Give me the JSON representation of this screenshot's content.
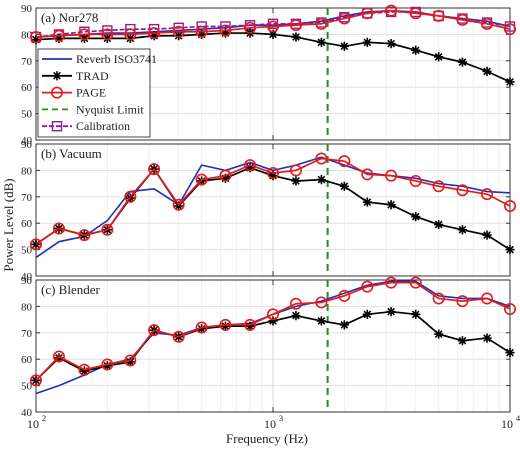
{
  "figure": {
    "ylabel": "Power Level (dB)",
    "xlabel": "Frequency (Hz)",
    "x_ticks": [
      100,
      1000,
      10000
    ],
    "x_tick_labels": [
      [
        "10",
        "2"
      ],
      [
        "10",
        "3"
      ],
      [
        "10",
        "4"
      ]
    ],
    "y_ticks": [
      40,
      50,
      60,
      70,
      80,
      90
    ],
    "xlim": [
      100,
      10000
    ],
    "ylim": [
      40,
      90
    ],
    "x_scale": "log",
    "grid": true,
    "nyquist_x": 1700
  },
  "colors": {
    "reverb": "#1f2fb8",
    "trad": "#000000",
    "page": "#e21b1b",
    "nyquist": "#1a8f1a",
    "calibration": "#8a1f9a"
  },
  "legend": {
    "placement": "left, panel (a)",
    "entries": [
      {
        "key": "reverb",
        "label": "Reverb ISO3741"
      },
      {
        "key": "trad",
        "label": "TRAD"
      },
      {
        "key": "page",
        "label": "PAGE"
      },
      {
        "key": "nyquist",
        "label": "Nyquist Limit"
      },
      {
        "key": "calibration",
        "label": "Calibration"
      }
    ]
  },
  "chart_data": [
    {
      "type": "line",
      "title": "(a) Nor278",
      "x": [
        100,
        125,
        160,
        200,
        250,
        315,
        400,
        500,
        630,
        800,
        1000,
        1250,
        1600,
        2000,
        2500,
        3150,
        4000,
        5000,
        6300,
        8000,
        10000
      ],
      "series": [
        {
          "name": "Reverb ISO3741",
          "values": [
            79,
            79.5,
            80,
            80.5,
            80.5,
            81,
            81.5,
            82,
            82.5,
            83.5,
            83.5,
            84,
            85,
            87,
            88.5,
            89,
            88.5,
            87,
            86,
            85,
            83
          ]
        },
        {
          "name": "TRAD",
          "values": [
            78,
            78.5,
            78.5,
            78.5,
            78.5,
            79.5,
            79.5,
            80,
            80.5,
            80.5,
            80,
            79,
            77,
            75.5,
            77,
            76.5,
            74,
            71.5,
            69.5,
            66,
            62
          ]
        },
        {
          "name": "PAGE",
          "values": [
            79,
            79.5,
            80,
            80,
            80,
            80.5,
            81,
            81,
            81.5,
            82.5,
            83,
            83.5,
            84,
            86,
            88,
            89,
            88,
            87,
            85.5,
            84,
            82
          ]
        },
        {
          "name": "Calibration",
          "values": [
            79,
            80,
            81,
            81.5,
            82,
            82,
            82.5,
            83,
            83,
            83.5,
            84,
            84,
            84.5,
            86.5,
            88,
            88.5,
            88.5,
            87,
            86,
            84.5,
            83
          ]
        }
      ]
    },
    {
      "type": "line",
      "title": "(b) Vacuum",
      "x": [
        100,
        125,
        160,
        200,
        250,
        315,
        400,
        500,
        630,
        800,
        1000,
        1250,
        1600,
        2000,
        2500,
        3150,
        4000,
        5000,
        6300,
        8000,
        10000
      ],
      "series": [
        {
          "name": "Reverb ISO3741",
          "values": [
            47,
            53,
            55,
            61,
            72,
            73,
            67,
            82,
            80,
            83,
            80,
            82,
            85,
            82,
            79,
            78,
            77,
            75,
            74,
            72,
            71.5
          ]
        },
        {
          "name": "TRAD",
          "values": [
            52,
            58,
            55.5,
            57.5,
            69.5,
            80.5,
            66.5,
            76,
            77,
            81,
            78,
            76,
            76.5,
            74,
            68,
            67,
            62.5,
            59.5,
            57.5,
            55.5,
            50
          ]
        },
        {
          "name": "PAGE",
          "values": [
            52,
            58,
            55.5,
            57.5,
            70,
            80.5,
            67,
            76.5,
            78,
            82,
            79,
            80,
            84.5,
            83.5,
            78.5,
            78,
            76,
            74,
            72.5,
            71,
            66.5
          ]
        }
      ]
    },
    {
      "type": "line",
      "title": "(c) Blender",
      "x": [
        100,
        125,
        160,
        200,
        250,
        315,
        400,
        500,
        630,
        800,
        1000,
        1250,
        1600,
        2000,
        2500,
        3150,
        4000,
        5000,
        6300,
        8000,
        10000
      ],
      "series": [
        {
          "name": "Reverb ISO3741",
          "values": [
            47,
            50,
            54,
            58,
            60,
            70,
            69,
            72,
            73,
            73.5,
            77,
            80,
            82,
            85,
            88,
            89.5,
            89.5,
            84,
            83,
            83,
            80
          ]
        },
        {
          "name": "TRAD",
          "values": [
            52,
            60.5,
            55.5,
            57.5,
            59,
            71,
            68.5,
            71.5,
            72.5,
            72.5,
            74.5,
            76.5,
            74.5,
            73,
            77,
            78,
            77,
            69.5,
            67,
            68,
            62.5
          ]
        },
        {
          "name": "PAGE",
          "values": [
            52,
            61,
            56,
            58,
            59.5,
            71,
            68.5,
            72,
            73,
            73,
            77,
            81,
            81.5,
            84,
            87.5,
            89,
            89,
            83,
            82,
            83,
            79
          ]
        }
      ]
    }
  ]
}
